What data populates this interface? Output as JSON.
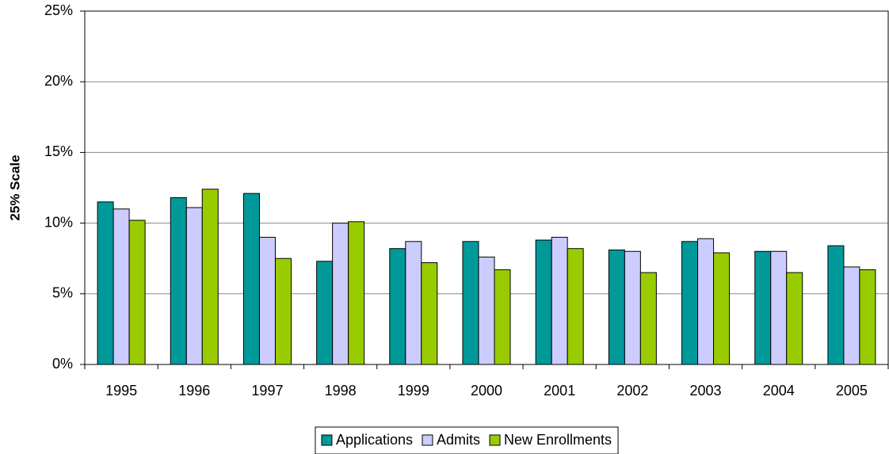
{
  "chart_data": {
    "type": "bar",
    "y_label": "25% Scale",
    "categories": [
      "1995",
      "1996",
      "1997",
      "1998",
      "1999",
      "2000",
      "2001",
      "2002",
      "2003",
      "2004",
      "2005"
    ],
    "series": [
      {
        "name": "Applications",
        "color": "#009999",
        "values": [
          11.5,
          11.8,
          12.1,
          7.3,
          8.2,
          8.7,
          8.8,
          8.1,
          8.7,
          8.0,
          8.4
        ]
      },
      {
        "name": "Admits",
        "color": "#ccccff",
        "values": [
          11.0,
          11.1,
          9.0,
          10.0,
          8.7,
          7.6,
          9.0,
          8.0,
          8.9,
          8.0,
          6.9
        ]
      },
      {
        "name": "New Enrollments",
        "color": "#99cc00",
        "values": [
          10.2,
          12.4,
          7.5,
          10.1,
          7.2,
          6.7,
          8.2,
          6.5,
          7.9,
          6.5,
          6.7
        ]
      }
    ],
    "ylim": [
      0,
      25
    ],
    "yticks": [
      {
        "value": 0,
        "label": "0%"
      },
      {
        "value": 5,
        "label": "5%"
      },
      {
        "value": 10,
        "label": "10%"
      },
      {
        "value": 15,
        "label": "15%"
      },
      {
        "value": 20,
        "label": "20%"
      },
      {
        "value": 25,
        "label": "25%"
      }
    ],
    "grid": true,
    "legend": "bottom"
  }
}
